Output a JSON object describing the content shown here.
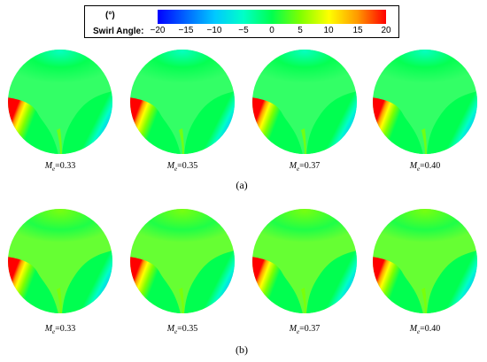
{
  "legend": {
    "unit": "(°)",
    "label": "Swirl Angle:",
    "ticks": [
      "−20",
      "−15",
      "−10",
      "−5",
      "0",
      "5",
      "10",
      "15",
      "20"
    ],
    "range": [
      -20,
      20
    ],
    "colors": [
      "#0000ff",
      "#0066ff",
      "#00c8ff",
      "#00ffc8",
      "#00ff50",
      "#7fff00",
      "#ffff00",
      "#ff9900",
      "#ff0000"
    ]
  },
  "panels": [
    {
      "label": "(a)",
      "maps": [
        {
          "mach_symbol": "M",
          "mach_sub": "e",
          "value_text": "=0.33"
        },
        {
          "mach_symbol": "M",
          "mach_sub": "e",
          "value_text": "=0.35"
        },
        {
          "mach_symbol": "M",
          "mach_sub": "e",
          "value_text": "=0.37"
        },
        {
          "mach_symbol": "M",
          "mach_sub": "e",
          "value_text": "=0.40"
        }
      ]
    },
    {
      "label": "(b)",
      "maps": [
        {
          "mach_symbol": "M",
          "mach_sub": "e",
          "value_text": "=0.33"
        },
        {
          "mach_symbol": "M",
          "mach_sub": "e",
          "value_text": "=0.35"
        },
        {
          "mach_symbol": "M",
          "mach_sub": "e",
          "value_text": "=0.37"
        },
        {
          "mach_symbol": "M",
          "mach_sub": "e",
          "value_text": "=0.40"
        }
      ]
    }
  ]
}
